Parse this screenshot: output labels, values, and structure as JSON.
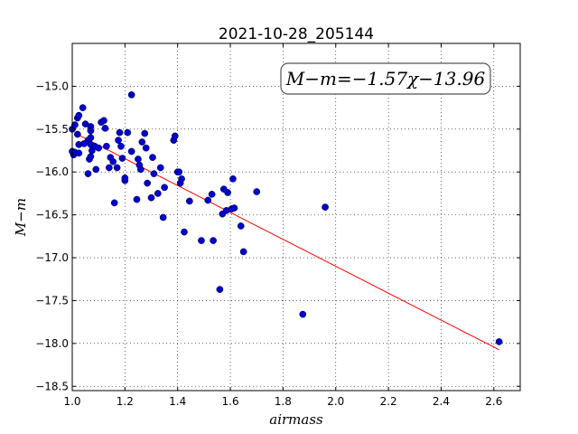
{
  "chart_data": {
    "type": "scatter",
    "title": "2021-10-28_205144",
    "xlabel": "airmass",
    "ylabel": "M−m",
    "annotation": "M−m=−1.57χ−13.96",
    "xlim": [
      1.0,
      2.7
    ],
    "ylim": [
      -18.55,
      -14.5
    ],
    "x_ticks": [
      1.0,
      1.2,
      1.4,
      1.6,
      1.8,
      2.0,
      2.2,
      2.4,
      2.6
    ],
    "x_tick_labels": [
      "1.0",
      "1.2",
      "1.4",
      "1.6",
      "1.8",
      "2.0",
      "2.2",
      "2.4",
      "2.6"
    ],
    "y_ticks": [
      -15.0,
      -15.5,
      -16.0,
      -16.5,
      -17.0,
      -17.5,
      -18.0,
      -18.5
    ],
    "y_tick_labels": [
      "−15.0",
      "−15.5",
      "−16.0",
      "−16.5",
      "−17.0",
      "−17.5",
      "−18.0",
      "−18.5"
    ],
    "grid": true,
    "fit_line": {
      "slope": -1.57,
      "intercept": -13.96,
      "x_range": [
        1.01,
        2.62
      ],
      "color": "#ff0000"
    },
    "point_color": "#0000cc",
    "points": [
      [
        1.0,
        -15.5
      ],
      [
        1.0,
        -15.76
      ],
      [
        1.005,
        -15.8
      ],
      [
        1.01,
        -15.45
      ],
      [
        1.01,
        -15.77
      ],
      [
        1.02,
        -15.37
      ],
      [
        1.025,
        -15.34
      ],
      [
        1.02,
        -15.56
      ],
      [
        1.025,
        -15.68
      ],
      [
        1.025,
        -15.78
      ],
      [
        1.04,
        -15.25
      ],
      [
        1.045,
        -15.67
      ],
      [
        1.05,
        -15.44
      ],
      [
        1.06,
        -15.63
      ],
      [
        1.06,
        -16.02
      ],
      [
        1.065,
        -15.85
      ],
      [
        1.07,
        -15.47
      ],
      [
        1.07,
        -15.52
      ],
      [
        1.07,
        -15.6
      ],
      [
        1.07,
        -15.68
      ],
      [
        1.07,
        -15.82
      ],
      [
        1.075,
        -15.75
      ],
      [
        1.085,
        -15.7
      ],
      [
        1.09,
        -15.97
      ],
      [
        1.1,
        -15.72
      ],
      [
        1.11,
        -15.42
      ],
      [
        1.12,
        -15.4
      ],
      [
        1.125,
        -15.49
      ],
      [
        1.13,
        -15.7
      ],
      [
        1.14,
        -15.95
      ],
      [
        1.145,
        -15.83
      ],
      [
        1.155,
        -15.88
      ],
      [
        1.16,
        -16.36
      ],
      [
        1.17,
        -15.95
      ],
      [
        1.175,
        -15.63
      ],
      [
        1.18,
        -15.54
      ],
      [
        1.185,
        -15.7
      ],
      [
        1.19,
        -15.84
      ],
      [
        1.2,
        -16.1
      ],
      [
        1.2,
        -16.07
      ],
      [
        1.21,
        -15.54
      ],
      [
        1.225,
        -15.1
      ],
      [
        1.225,
        -15.76
      ],
      [
        1.245,
        -16.32
      ],
      [
        1.25,
        -15.85
      ],
      [
        1.255,
        -15.92
      ],
      [
        1.26,
        -15.97
      ],
      [
        1.265,
        -15.65
      ],
      [
        1.275,
        -15.55
      ],
      [
        1.28,
        -15.72
      ],
      [
        1.285,
        -16.13
      ],
      [
        1.3,
        -16.3
      ],
      [
        1.305,
        -15.83
      ],
      [
        1.31,
        -16.02
      ],
      [
        1.325,
        -16.25
      ],
      [
        1.335,
        -15.95
      ],
      [
        1.345,
        -16.53
      ],
      [
        1.35,
        -16.18
      ],
      [
        1.385,
        -15.63
      ],
      [
        1.39,
        -15.58
      ],
      [
        1.4,
        -16.0
      ],
      [
        1.405,
        -16.0
      ],
      [
        1.41,
        -16.13
      ],
      [
        1.415,
        -16.08
      ],
      [
        1.425,
        -16.7
      ],
      [
        1.445,
        -16.34
      ],
      [
        1.49,
        -16.8
      ],
      [
        1.515,
        -16.33
      ],
      [
        1.53,
        -16.26
      ],
      [
        1.535,
        -16.8
      ],
      [
        1.56,
        -17.37
      ],
      [
        1.57,
        -16.49
      ],
      [
        1.575,
        -16.2
      ],
      [
        1.585,
        -16.45
      ],
      [
        1.59,
        -16.24
      ],
      [
        1.605,
        -16.43
      ],
      [
        1.61,
        -16.08
      ],
      [
        1.615,
        -16.42
      ],
      [
        1.64,
        -16.63
      ],
      [
        1.65,
        -16.93
      ],
      [
        1.7,
        -16.23
      ],
      [
        1.875,
        -17.66
      ],
      [
        1.96,
        -16.41
      ],
      [
        2.62,
        -17.98
      ]
    ]
  }
}
